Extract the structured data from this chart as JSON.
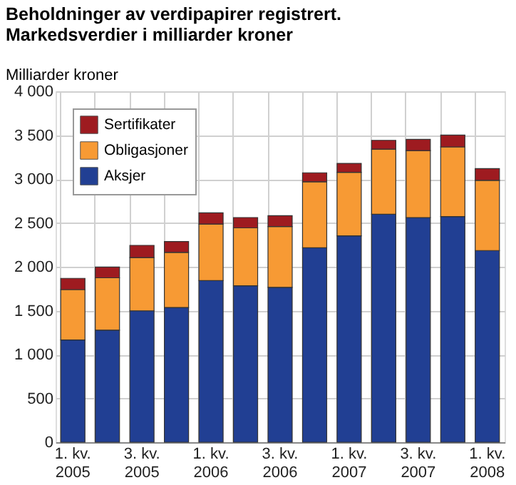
{
  "chart_data": {
    "type": "bar",
    "stacked": true,
    "title": "Beholdninger av verdipapirer registrert.",
    "subtitle": "Markedsverdier i milliarder kroner",
    "ylabel": "Milliarder kroner",
    "categories": [
      "1. kv. 2005",
      null,
      "3. kv. 2005",
      null,
      "1. kv. 2006",
      null,
      "3. kv. 2006",
      null,
      "1. kv. 2007",
      null,
      "3. kv. 2007",
      null,
      "1. kv. 2008"
    ],
    "series": [
      {
        "name": "Aksjer",
        "color": "#213f93",
        "values": [
          1165,
          1278,
          1498,
          1536,
          1842,
          1783,
          1766,
          2217,
          2352,
          2599,
          2561,
          2572,
          2185
        ]
      },
      {
        "name": "Obligasjoner",
        "color": "#f79a34",
        "values": [
          575,
          596,
          607,
          628,
          644,
          660,
          693,
          752,
          725,
          741,
          763,
          794,
          800
        ]
      },
      {
        "name": "Sertifikater",
        "color": "#9e1b20",
        "values": [
          128,
          123,
          139,
          123,
          129,
          118,
          124,
          102,
          101,
          101,
          128,
          135,
          134
        ]
      }
    ],
    "ylim": [
      0,
      4000
    ],
    "yticks": [
      0,
      500,
      {
        "value": 1000,
        "label": "1 000"
      },
      {
        "value": 1500,
        "label": "1 500"
      },
      {
        "value": 2000,
        "label": "2 000"
      },
      {
        "value": 2500,
        "label": "2 500"
      },
      {
        "value": 3000,
        "label": "3 000"
      },
      {
        "value": 3500,
        "label": "3 500"
      },
      {
        "value": 4000,
        "label": "4 000"
      }
    ],
    "grid": true,
    "legend": "top left"
  }
}
